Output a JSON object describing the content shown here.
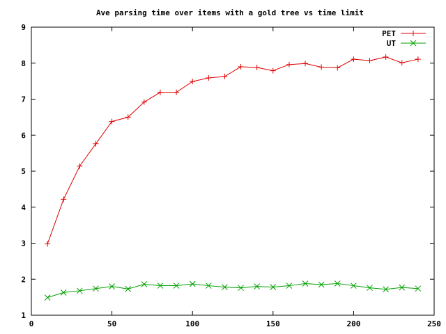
{
  "chart_data": {
    "type": "line",
    "title": "Ave parsing time over items with a gold tree vs time limit",
    "xlabel": "",
    "ylabel": "",
    "xlim": [
      0,
      250
    ],
    "ylim": [
      1,
      9
    ],
    "xticks": [
      0,
      50,
      100,
      150,
      200,
      250
    ],
    "yticks": [
      1,
      2,
      3,
      4,
      5,
      6,
      7,
      8,
      9
    ],
    "grid": false,
    "legend_position": "top-right",
    "x": [
      10,
      20,
      30,
      40,
      50,
      60,
      70,
      80,
      90,
      100,
      110,
      120,
      130,
      140,
      150,
      160,
      170,
      180,
      190,
      200,
      210,
      220,
      230,
      240
    ],
    "series": [
      {
        "name": "PET",
        "color": "#e00000",
        "marker": "plus",
        "values": [
          2.98,
          4.22,
          5.14,
          5.76,
          6.38,
          6.5,
          6.92,
          7.19,
          7.19,
          7.49,
          7.59,
          7.63,
          7.9,
          7.88,
          7.79,
          7.96,
          7.99,
          7.89,
          7.87,
          8.11,
          8.07,
          8.17,
          8.01,
          8.11
        ]
      },
      {
        "name": "UT",
        "color": "#00a000",
        "marker": "cross",
        "values": [
          1.49,
          1.63,
          1.68,
          1.74,
          1.8,
          1.73,
          1.86,
          1.82,
          1.82,
          1.87,
          1.82,
          1.78,
          1.76,
          1.8,
          1.78,
          1.82,
          1.88,
          1.85,
          1.88,
          1.82,
          1.76,
          1.72,
          1.77,
          1.74
        ]
      }
    ]
  }
}
